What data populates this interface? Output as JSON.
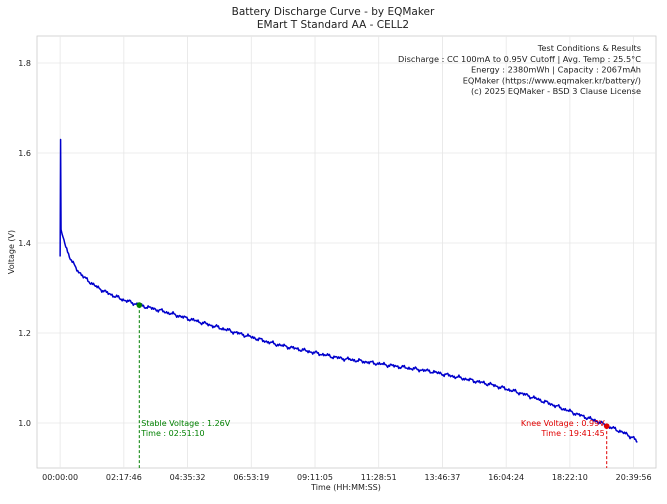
{
  "chart_data": {
    "type": "line",
    "title": "Battery Discharge Curve - by EQMaker",
    "subtitle": "EMart T Standard AA - CELL2",
    "xlabel": "Time (HH:MM:SS)",
    "ylabel": "Voltage (V)",
    "xlim_seconds": [
      -3000,
      77300
    ],
    "ylim": [
      0.9,
      1.86
    ],
    "x_ticks": [
      {
        "sec": 0,
        "label": "00:00:00"
      },
      {
        "sec": 8266,
        "label": "02:17:46"
      },
      {
        "sec": 16532,
        "label": "04:35:32"
      },
      {
        "sec": 24799,
        "label": "06:53:19"
      },
      {
        "sec": 33065,
        "label": "09:11:05"
      },
      {
        "sec": 41331,
        "label": "11:28:51"
      },
      {
        "sec": 49597,
        "label": "13:46:37"
      },
      {
        "sec": 57864,
        "label": "16:04:24"
      },
      {
        "sec": 66130,
        "label": "18:22:10"
      },
      {
        "sec": 74396,
        "label": "20:39:56"
      }
    ],
    "y_ticks": [
      {
        "v": 1.0,
        "label": "1.0"
      },
      {
        "v": 1.2,
        "label": "1.2"
      },
      {
        "v": 1.4,
        "label": "1.4"
      },
      {
        "v": 1.6,
        "label": "1.6"
      },
      {
        "v": 1.8,
        "label": "1.8"
      }
    ],
    "grid": true,
    "legend": "none",
    "info_box": {
      "placement": "top-right",
      "lines": [
        "Test Conditions & Results",
        "Discharge : CC 100mA to 0.95V Cutoff | Avg. Temp : 25.5°C",
        "Energy : 2380mWh | Capacity : 2067mAh",
        "EQMaker (https://www.eqmaker.kr/battery/)",
        "(c) 2025 EQMaker - BSD 3 Clause License"
      ]
    },
    "series": [
      {
        "name": "Voltage",
        "color": "#0000cc",
        "x_seconds": [
          0,
          60,
          120,
          250,
          600,
          1200,
          2000,
          3000,
          4500,
          6000,
          8000,
          10270,
          13000,
          16000,
          20000,
          24000,
          28000,
          32000,
          36000,
          40000,
          44000,
          48000,
          52000,
          56000,
          60000,
          64000,
          67000,
          69500,
          71000,
          72200,
          73500,
          74500,
          75000
        ],
        "values": [
          1.37,
          1.63,
          1.43,
          1.42,
          1.4,
          1.37,
          1.345,
          1.325,
          1.305,
          1.29,
          1.275,
          1.262,
          1.25,
          1.235,
          1.215,
          1.195,
          1.175,
          1.16,
          1.145,
          1.135,
          1.125,
          1.115,
          1.1,
          1.085,
          1.065,
          1.04,
          1.02,
          1.005,
          0.993,
          0.985,
          0.975,
          0.965,
          0.955
        ]
      }
    ],
    "annotations": [
      {
        "name": "stable-voltage",
        "x_seconds": 10270,
        "y": 1.262,
        "color": "#008000",
        "lines": [
          "Stable Voltage : 1.26V",
          "Time : 02:51:10"
        ],
        "align": "left"
      },
      {
        "name": "knee-voltage",
        "x_seconds": 70905,
        "y": 0.993,
        "color": "#e00000",
        "lines": [
          "Knee Voltage : 0.99V",
          "Time : 19:41:45"
        ],
        "align": "right"
      }
    ]
  }
}
